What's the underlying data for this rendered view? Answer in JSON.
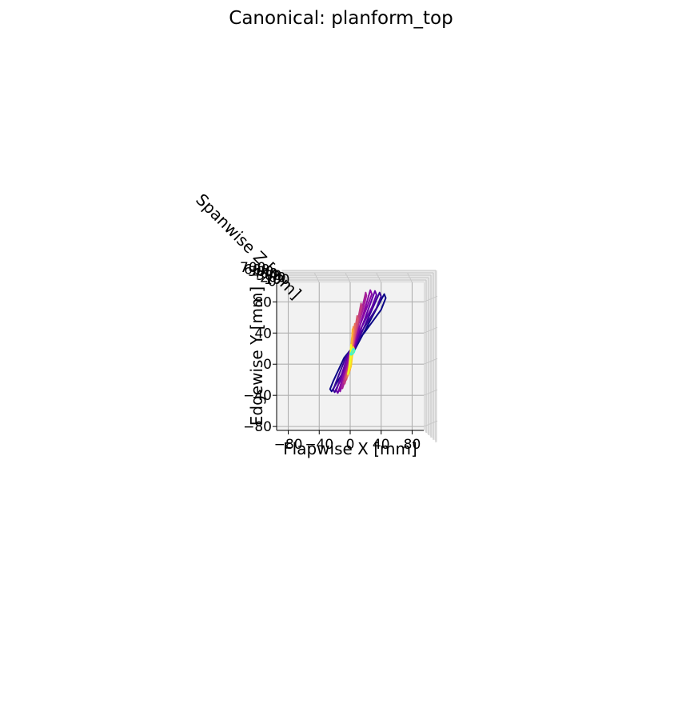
{
  "chart_data": {
    "type": "line",
    "title": "Canonical: planform_top",
    "xlabel": "Flapwise X [mm]",
    "ylabel": "Edgewise Y [mm]",
    "zlabel": "Spanwise Z [mm]",
    "x_ticks": [
      "−80",
      "−40",
      "0",
      "40",
      "80"
    ],
    "y_ticks": [
      "−80",
      "−40",
      "0",
      "40",
      "80"
    ],
    "z_ticks": [
      "700",
      "600",
      "500",
      "400",
      "300",
      "200",
      "100",
      "0"
    ],
    "xlim": [
      -95,
      95
    ],
    "ylim": [
      -85,
      105
    ],
    "grid": true,
    "colormap": "plasma",
    "series": [
      {
        "color": "#0d0887",
        "x": [
          -12,
          44,
          46,
          40,
          18,
          -8,
          -22,
          -26,
          -24,
          -12
        ],
        "y": [
          -15,
          90,
          85,
          70,
          40,
          8,
          -22,
          -32,
          -35,
          -15
        ]
      },
      {
        "color": "#3b049a",
        "x": [
          -10,
          38,
          40,
          34,
          15,
          -6,
          -18,
          -22,
          -20,
          -10
        ],
        "y": [
          -15,
          92,
          87,
          72,
          42,
          8,
          -22,
          -33,
          -36,
          -15
        ]
      },
      {
        "color": "#6300a7",
        "x": [
          -8,
          32,
          34,
          28,
          12,
          -4,
          -14,
          -18,
          -16,
          -8
        ],
        "y": [
          -15,
          94,
          89,
          73,
          42,
          8,
          -22,
          -34,
          -37,
          -15
        ]
      },
      {
        "color": "#8707a6",
        "x": [
          -6,
          26,
          28,
          22,
          10,
          -2,
          -11,
          -14,
          -13,
          -6
        ],
        "y": [
          -14,
          95,
          90,
          74,
          43,
          9,
          -21,
          -33,
          -35,
          -14
        ]
      },
      {
        "color": "#a62098",
        "x": [
          -4,
          20,
          21,
          17,
          8,
          0,
          -8,
          -11,
          -10,
          -4
        ],
        "y": [
          -13,
          92,
          88,
          72,
          42,
          9,
          -18,
          -30,
          -31,
          -13
        ]
      },
      {
        "color": "#c03a83",
        "x": [
          -3,
          14,
          15,
          12,
          6,
          1,
          -6,
          -8,
          -7,
          -3
        ],
        "y": [
          -11,
          78,
          74,
          60,
          35,
          8,
          -15,
          -24,
          -25,
          -11
        ]
      },
      {
        "color": "#d5546e",
        "x": [
          -2,
          9,
          10,
          8,
          4,
          1,
          -4,
          -6,
          -5,
          -2
        ],
        "y": [
          -9,
          62,
          58,
          48,
          28,
          6,
          -12,
          -19,
          -20,
          -9
        ]
      },
      {
        "color": "#e76f5a",
        "x": [
          -1,
          6,
          6,
          5,
          3,
          1,
          -3,
          -4,
          -4,
          -1
        ],
        "y": [
          -8,
          52,
          48,
          40,
          24,
          5,
          -10,
          -16,
          -17,
          -8
        ]
      },
      {
        "color": "#f58c46",
        "x": [
          0,
          4,
          4,
          3,
          2,
          0,
          -2,
          -3,
          -3,
          0
        ],
        "y": [
          -7,
          48,
          44,
          36,
          20,
          4,
          -8,
          -14,
          -15,
          -7
        ]
      },
      {
        "color": "#fdad32",
        "x": [
          0,
          3,
          3,
          2,
          1,
          0,
          -2,
          -2,
          -2,
          0
        ],
        "y": [
          -6,
          45,
          40,
          32,
          18,
          3,
          -6,
          -11,
          -12,
          -6
        ]
      },
      {
        "color": "#fcd225",
        "x": [
          1,
          4,
          5,
          4,
          2,
          0,
          -1,
          -2,
          -2,
          1
        ],
        "y": [
          -4,
          22,
          20,
          15,
          8,
          2,
          -4,
          -8,
          -8,
          -4
        ]
      },
      {
        "color": "#f0f921",
        "x": [
          -2,
          1,
          2,
          1,
          0,
          -2,
          -3,
          -3,
          -2
        ],
        "y": [
          -10,
          25,
          20,
          10,
          2,
          -8,
          -12,
          -13,
          -10
        ]
      },
      {
        "color": "#3df5d2",
        "x": [
          1,
          4,
          6,
          5,
          3,
          1,
          0,
          1
        ],
        "y": [
          14,
          20,
          18,
          15,
          13,
          12,
          13,
          14
        ]
      }
    ]
  }
}
